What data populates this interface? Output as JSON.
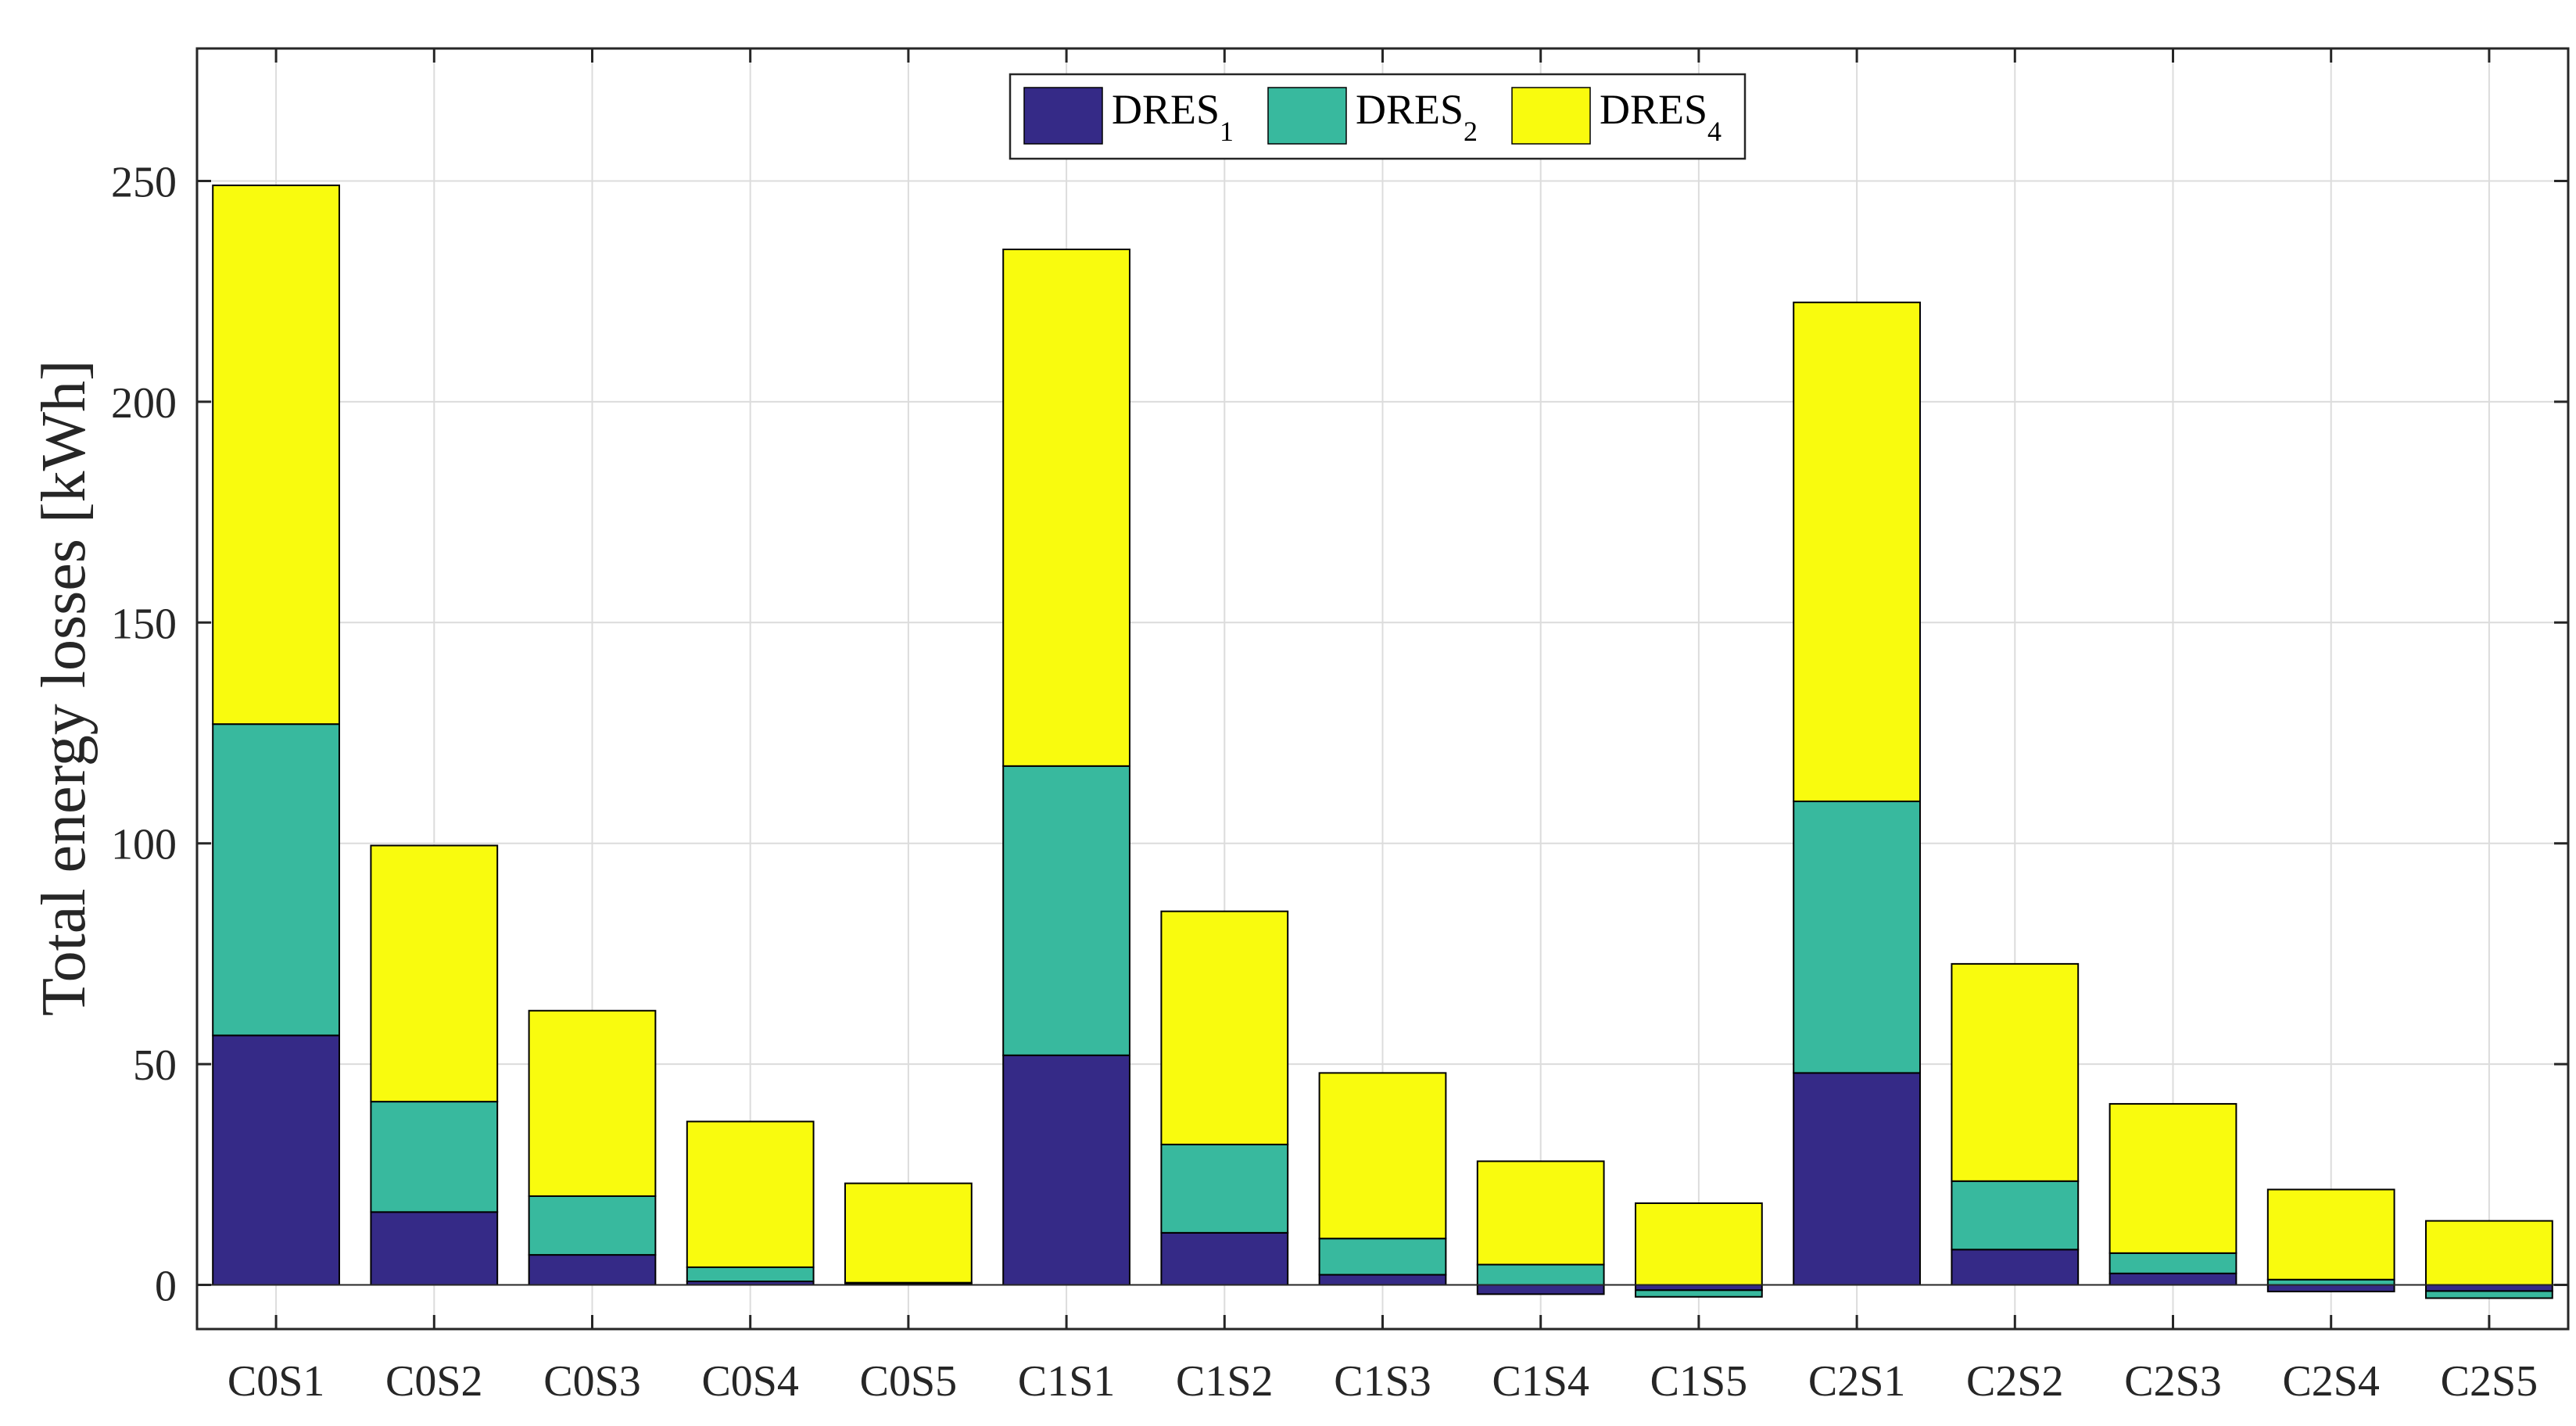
{
  "chart_data": {
    "type": "bar",
    "stacked": true,
    "title": "",
    "xlabel": "",
    "ylabel": "Total energy losses [kWh]",
    "ylim": [
      -10,
      280
    ],
    "yticks": [
      0,
      50,
      100,
      150,
      200,
      250
    ],
    "grid": true,
    "legend_position": "top-center",
    "categories": [
      "C0S1",
      "C0S2",
      "C0S3",
      "C0S4",
      "C0S5",
      "C1S1",
      "C1S2",
      "C1S3",
      "C1S4",
      "C1S5",
      "C2S1",
      "C2S2",
      "C2S3",
      "C2S4",
      "C2S5"
    ],
    "series": [
      {
        "name": "DRES",
        "subscript": "1",
        "color": "#352A87",
        "values": [
          56.5,
          16.5,
          6.8,
          0.8,
          0.2,
          52,
          11.8,
          2.3,
          -2.1,
          -1.2,
          48,
          8,
          2.6,
          -1.5,
          -1.4
        ]
      },
      {
        "name": "DRES",
        "subscript": "2",
        "color": "#38B99E",
        "values": [
          70.5,
          25,
          13.3,
          3.2,
          0.3,
          65.5,
          20,
          8.2,
          4.6,
          -1.5,
          61.5,
          15.5,
          4.6,
          1.2,
          -1.6
        ]
      },
      {
        "name": "DRES",
        "subscript": "4",
        "color": "#F9FB0E",
        "values": [
          122,
          58,
          42,
          33,
          22.5,
          117,
          52.8,
          37.5,
          23.4,
          18.5,
          113,
          49.2,
          33.8,
          20.4,
          14.5
        ]
      }
    ]
  }
}
